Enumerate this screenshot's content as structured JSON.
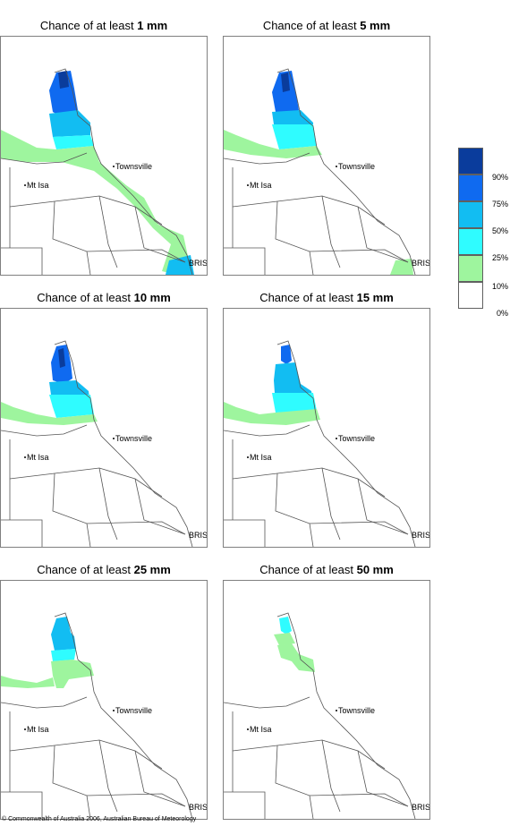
{
  "panels": [
    {
      "title_prefix": "Chance of at least ",
      "amount": "1 mm"
    },
    {
      "title_prefix": "Chance of at least ",
      "amount": "5 mm"
    },
    {
      "title_prefix": "Chance of at least ",
      "amount": "10 mm"
    },
    {
      "title_prefix": "Chance of at least ",
      "amount": "15 mm"
    },
    {
      "title_prefix": "Chance of at least ",
      "amount": "25 mm"
    },
    {
      "title_prefix": "Chance of at least ",
      "amount": "50 mm"
    }
  ],
  "places": {
    "townsville": "Townsville",
    "mt_isa": "Mt Isa",
    "brisbane": "BRIS"
  },
  "legend": {
    "labels": [
      "90%",
      "75%",
      "50%",
      "25%",
      "10%",
      "0%"
    ],
    "colors": [
      "#0a3c9c",
      "#0f6af0",
      "#12bdf2",
      "#2ffcff",
      "#9ef59e",
      "#ffffff"
    ]
  },
  "footer": "© Commonwealth of Australia 2006, Australian Bureau of Meteorology"
}
